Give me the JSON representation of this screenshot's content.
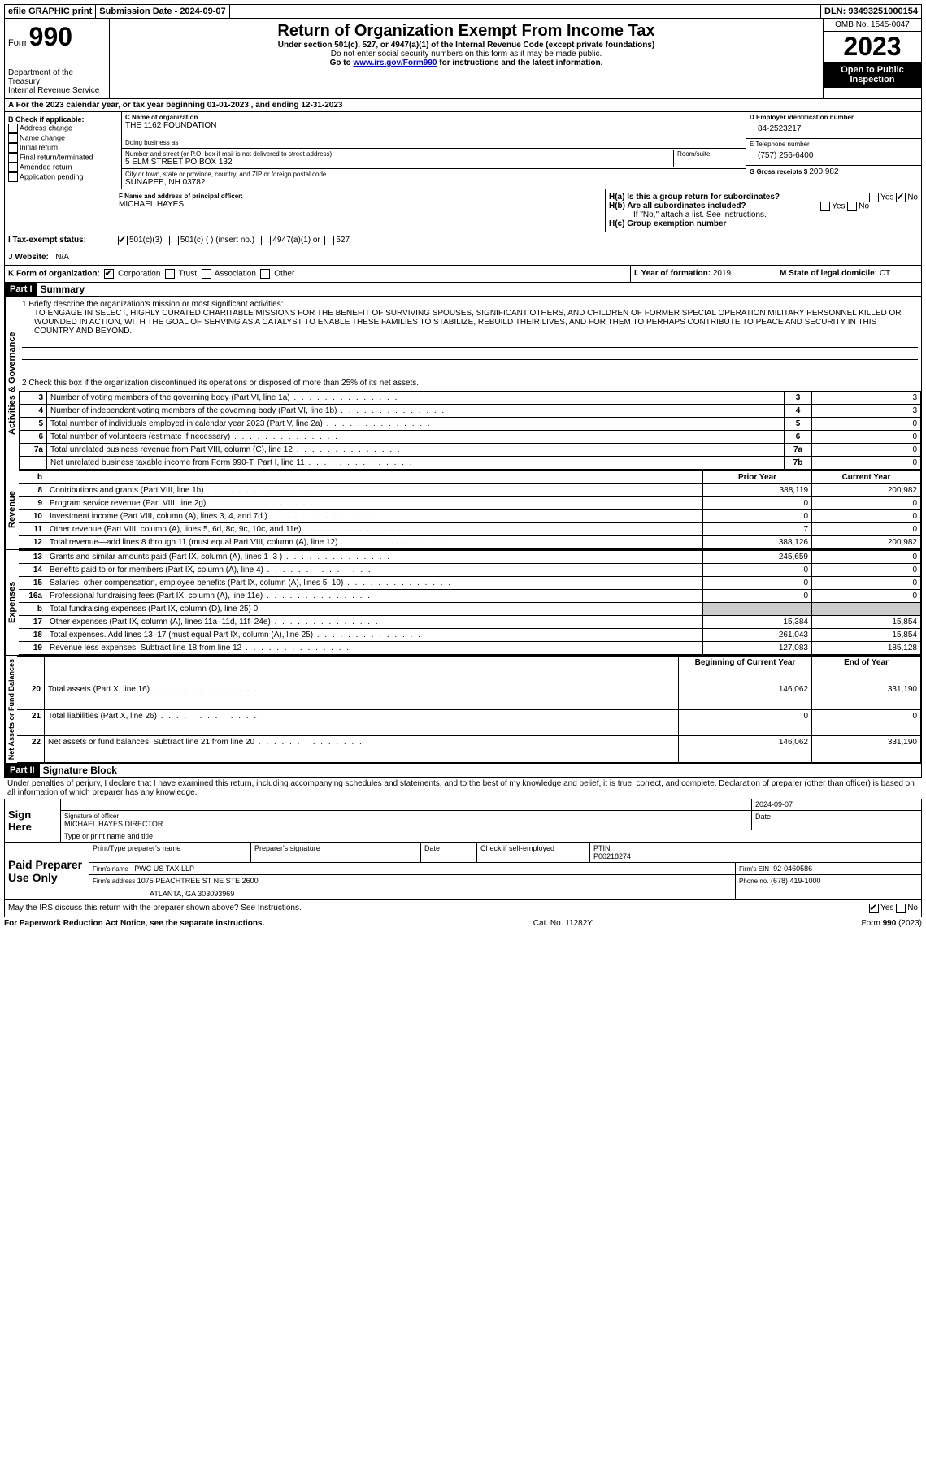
{
  "topbar": {
    "efile": "efile GRAPHIC print",
    "submission_label": "Submission Date - 2024-09-07",
    "dln": "DLN: 93493251000154"
  },
  "header": {
    "form_prefix": "Form",
    "form_number": "990",
    "dept": "Department of the Treasury",
    "irs": "Internal Revenue Service",
    "title": "Return of Organization Exempt From Income Tax",
    "subtitle": "Under section 501(c), 527, or 4947(a)(1) of the Internal Revenue Code (except private foundations)",
    "note1": "Do not enter social security numbers on this form as it may be made public.",
    "note2_pre": "Go to ",
    "note2_link": "www.irs.gov/Form990",
    "note2_post": " for instructions and the latest information.",
    "omb": "OMB No. 1545-0047",
    "year": "2023",
    "open": "Open to Public Inspection"
  },
  "section_a": "A  For the 2023 calendar year, or tax year beginning 01-01-2023    , and ending 12-31-2023",
  "col_b": {
    "header": "B Check if applicable:",
    "items": [
      "Address change",
      "Name change",
      "Initial return",
      "Final return/terminated",
      "Amended return",
      "Application pending"
    ]
  },
  "col_c": {
    "name_label": "C Name of organization",
    "name": "THE 1162 FOUNDATION",
    "dba_label": "Doing business as",
    "street_label": "Number and street (or P.O. box if mail is not delivered to street address)",
    "room_label": "Room/suite",
    "street": "5 ELM STREET PO BOX 132",
    "city_label": "City or town, state or province, country, and ZIP or foreign postal code",
    "city": "SUNAPEE, NH  03782"
  },
  "col_d": {
    "ein_label": "D Employer identification number",
    "ein": "84-2523217",
    "tel_label": "E Telephone number",
    "tel": "(757) 256-6400",
    "gross_label": "G Gross receipts $ ",
    "gross": "200,982"
  },
  "section_f": {
    "label": "F Name and address of principal officer:",
    "name": "MICHAEL HAYES"
  },
  "section_h": {
    "ha": "H(a)  Is this a group return for subordinates?",
    "hb": "H(b)  Are all subordinates included?",
    "hb_note": "If \"No,\" attach a list. See instructions.",
    "hc": "H(c)  Group exemption number",
    "yes": "Yes",
    "no": "No"
  },
  "section_i": {
    "label": "I    Tax-exempt status:",
    "opt1": "501(c)(3)",
    "opt2": "501(c) (  ) (insert no.)",
    "opt3": "4947(a)(1) or",
    "opt4": "527"
  },
  "section_j": {
    "label": "J    Website:",
    "value": "N/A"
  },
  "section_k": {
    "label": "K Form of organization:",
    "opts": [
      "Corporation",
      "Trust",
      "Association",
      "Other"
    ]
  },
  "section_l": {
    "label": "L Year of formation: ",
    "value": "2019"
  },
  "section_m": {
    "label": "M State of legal domicile: ",
    "value": "CT"
  },
  "part1": {
    "num": "Part I",
    "title": "Summary",
    "mission_label": "1   Briefly describe the organization's mission or most significant activities:",
    "mission": "TO ENGAGE IN SELECT, HIGHLY CURATED CHARITABLE MISSIONS FOR THE BENEFIT OF SURVIVING SPOUSES, SIGNIFICANT OTHERS, AND CHILDREN OF FORMER SPECIAL OPERATION MILITARY PERSONNEL KILLED OR WOUNDED IN ACTION, WITH THE GOAL OF SERVING AS A CATALYST TO ENABLE THESE FAMILIES TO STABILIZE, REBUILD THEIR LIVES, AND FOR THEM TO PERHAPS CONTRIBUTE TO PEACE AND SECURITY IN THIS COUNTRY AND BEYOND.",
    "line2": "2    Check this box      if the organization discontinued its operations or disposed of more than 25% of its net assets.",
    "governance_rows": [
      {
        "n": "3",
        "label": "Number of voting members of the governing body (Part VI, line 1a)",
        "box": "3",
        "val": "3"
      },
      {
        "n": "4",
        "label": "Number of independent voting members of the governing body (Part VI, line 1b)",
        "box": "4",
        "val": "3"
      },
      {
        "n": "5",
        "label": "Total number of individuals employed in calendar year 2023 (Part V, line 2a)",
        "box": "5",
        "val": "0"
      },
      {
        "n": "6",
        "label": "Total number of volunteers (estimate if necessary)",
        "box": "6",
        "val": "0"
      },
      {
        "n": "7a",
        "label": "Total unrelated business revenue from Part VIII, column (C), line 12",
        "box": "7a",
        "val": "0"
      },
      {
        "n": "",
        "label": "Net unrelated business taxable income from Form 990-T, Part I, line 11",
        "box": "7b",
        "val": "0"
      }
    ],
    "col_headers": {
      "prior": "Prior Year",
      "current": "Current Year",
      "begin": "Beginning of Current Year",
      "end": "End of Year"
    },
    "revenue_rows": [
      {
        "n": "8",
        "label": "Contributions and grants (Part VIII, line 1h)",
        "prior": "388,119",
        "curr": "200,982"
      },
      {
        "n": "9",
        "label": "Program service revenue (Part VIII, line 2g)",
        "prior": "0",
        "curr": "0"
      },
      {
        "n": "10",
        "label": "Investment income (Part VIII, column (A), lines 3, 4, and 7d )",
        "prior": "0",
        "curr": "0"
      },
      {
        "n": "11",
        "label": "Other revenue (Part VIII, column (A), lines 5, 6d, 8c, 9c, 10c, and 11e)",
        "prior": "7",
        "curr": "0"
      },
      {
        "n": "12",
        "label": "Total revenue—add lines 8 through 11 (must equal Part VIII, column (A), line 12)",
        "prior": "388,126",
        "curr": "200,982"
      }
    ],
    "expense_rows": [
      {
        "n": "13",
        "label": "Grants and similar amounts paid (Part IX, column (A), lines 1–3 )",
        "prior": "245,659",
        "curr": "0"
      },
      {
        "n": "14",
        "label": "Benefits paid to or for members (Part IX, column (A), line 4)",
        "prior": "0",
        "curr": "0"
      },
      {
        "n": "15",
        "label": "Salaries, other compensation, employee benefits (Part IX, column (A), lines 5–10)",
        "prior": "0",
        "curr": "0"
      },
      {
        "n": "16a",
        "label": "Professional fundraising fees (Part IX, column (A), line 11e)",
        "prior": "0",
        "curr": "0"
      },
      {
        "n": "b",
        "label": "Total fundraising expenses (Part IX, column (D), line 25) 0",
        "prior": "GRAY",
        "curr": "GRAY"
      },
      {
        "n": "17",
        "label": "Other expenses (Part IX, column (A), lines 11a–11d, 11f–24e)",
        "prior": "15,384",
        "curr": "15,854"
      },
      {
        "n": "18",
        "label": "Total expenses. Add lines 13–17 (must equal Part IX, column (A), line 25)",
        "prior": "261,043",
        "curr": "15,854"
      },
      {
        "n": "19",
        "label": "Revenue less expenses. Subtract line 18 from line 12",
        "prior": "127,083",
        "curr": "185,128"
      }
    ],
    "net_rows": [
      {
        "n": "20",
        "label": "Total assets (Part X, line 16)",
        "prior": "146,062",
        "curr": "331,190"
      },
      {
        "n": "21",
        "label": "Total liabilities (Part X, line 26)",
        "prior": "0",
        "curr": "0"
      },
      {
        "n": "22",
        "label": "Net assets or fund balances. Subtract line 21 from line 20",
        "prior": "146,062",
        "curr": "331,190"
      }
    ],
    "vlabels": {
      "gov": "Activities & Governance",
      "rev": "Revenue",
      "exp": "Expenses",
      "net": "Net Assets or Fund Balances"
    },
    "b_label": "b"
  },
  "part2": {
    "num": "Part II",
    "title": "Signature Block",
    "declaration": "Under penalties of perjury, I declare that I have examined this return, including accompanying schedules and statements, and to the best of my knowledge and belief, it is true, correct, and complete. Declaration of preparer (other than officer) is based on all information of which preparer has any knowledge.",
    "sign_here": "Sign Here",
    "sig_date": "2024-09-07",
    "sig_officer_label": "Signature of officer",
    "sig_date_label": "Date",
    "officer_name": "MICHAEL HAYES  DIRECTOR",
    "officer_type_label": "Type or print name and title",
    "paid": "Paid Preparer Use Only",
    "prep_name_label": "Print/Type preparer's name",
    "prep_sig_label": "Preparer's signature",
    "date_label": "Date",
    "check_label": "Check        if self-employed",
    "ptin_label": "PTIN",
    "ptin": "P00218274",
    "firm_name_label": "Firm's name",
    "firm_name": "PWC US TAX LLP",
    "firm_ein_label": "Firm's EIN",
    "firm_ein": "92-0460586",
    "firm_addr_label": "Firm's address",
    "firm_addr": "1075 PEACHTREE ST NE STE 2600",
    "firm_city": "ATLANTA, GA  303093969",
    "phone_label": "Phone no.",
    "phone": "(678) 419-1000",
    "discuss": "May the IRS discuss this return with the preparer shown above? See Instructions.",
    "yes": "Yes",
    "no": "No"
  },
  "footer": {
    "paperwork": "For Paperwork Reduction Act Notice, see the separate instructions.",
    "cat": "Cat. No. 11282Y",
    "form": "Form 990 (2023)"
  }
}
